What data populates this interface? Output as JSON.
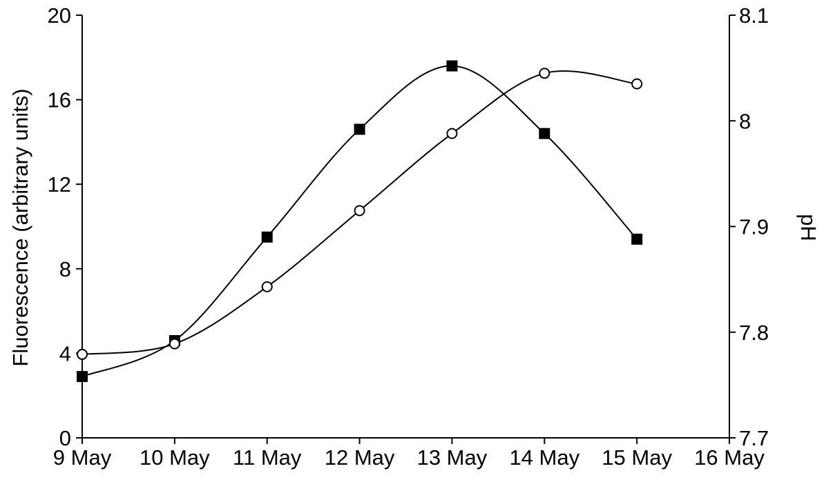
{
  "chart_data": {
    "type": "line",
    "title": "",
    "x_categories": [
      "9 May",
      "10 May",
      "11 May",
      "12 May",
      "13 May",
      "14 May",
      "15 May",
      "16 May"
    ],
    "ylabel_left": "Fluorescence (arbitrary units)",
    "ylabel_right": "pH",
    "ylim_left": [
      0,
      20
    ],
    "ylim_right": [
      7.7,
      8.1
    ],
    "yticks_left": [
      "0",
      "4",
      "8",
      "12",
      "16",
      "20"
    ],
    "yticks_right": [
      "7.7",
      "7.8",
      "7.9",
      "8",
      "8.1"
    ],
    "grid": false,
    "legend": "none",
    "series": [
      {
        "marker": "filled-square",
        "axis": "left",
        "values": [
          2.9,
          4.6,
          9.5,
          14.6,
          17.6,
          14.4,
          9.4
        ]
      },
      {
        "marker": "open-circle",
        "axis": "right",
        "values": [
          7.779,
          7.789,
          7.843,
          7.915,
          7.988,
          8.045,
          8.035
        ]
      }
    ]
  }
}
